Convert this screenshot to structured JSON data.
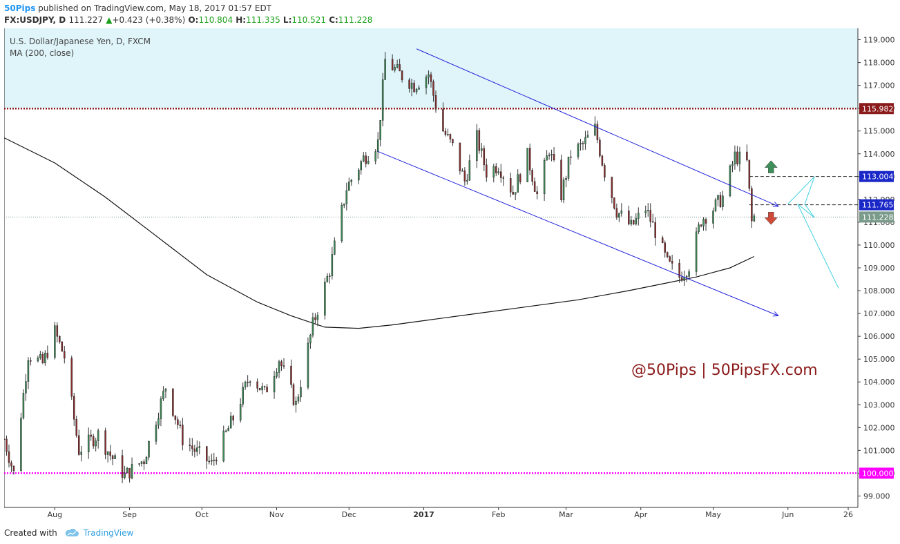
{
  "header": {
    "publisher": "50Pips",
    "published_text": "published on TradingView.com, May 18, 2017 01:57 EDT",
    "symbol": "FX:USDJPY, D",
    "last": "111.227",
    "change_arrow": "▲",
    "change": "+0.423 (+0.38%)",
    "o_label": "O:",
    "o_value": "110.804",
    "h_label": "H:",
    "h_value": "111.335",
    "l_label": "L:",
    "l_value": "110.521",
    "c_label": "C:",
    "c_value": "111.228"
  },
  "footer": {
    "created_with": "Created with",
    "brand": "TradingView"
  },
  "chart_data": {
    "type": "candlestick",
    "title": "U.S. Dollar/Japanese Yen, D, FXCM",
    "indicator": "MA (200, close)",
    "watermark": "@50Pips  |  50PipsFX.com",
    "y_range": [
      98.5,
      119.5
    ],
    "y_ticks": [
      "119.000",
      "118.000",
      "117.000",
      "116.000",
      "115.000",
      "114.000",
      "113.000",
      "112.000",
      "111.000",
      "110.000",
      "109.000",
      "108.000",
      "107.000",
      "106.000",
      "105.000",
      "104.000",
      "103.000",
      "102.000",
      "101.000",
      "100.000",
      "99.000"
    ],
    "x_range": [
      "2016-07-11",
      "2017-06-30"
    ],
    "x_ticks": [
      {
        "date": "2016-08-01",
        "label": "Aug",
        "bold": false
      },
      {
        "date": "2016-09-01",
        "label": "Sep",
        "bold": false
      },
      {
        "date": "2016-10-01",
        "label": "Oct",
        "bold": false
      },
      {
        "date": "2016-11-01",
        "label": "Nov",
        "bold": false
      },
      {
        "date": "2016-12-01",
        "label": "Dec",
        "bold": false
      },
      {
        "date": "2017-01-01",
        "label": "2017",
        "bold": true
      },
      {
        "date": "2017-02-01",
        "label": "Feb",
        "bold": false
      },
      {
        "date": "2017-03-01",
        "label": "Mar",
        "bold": false
      },
      {
        "date": "2017-04-01",
        "label": "Apr",
        "bold": false
      },
      {
        "date": "2017-05-01",
        "label": "May",
        "bold": false
      },
      {
        "date": "2017-06-01",
        "label": "Jun",
        "bold": false
      },
      {
        "date": "2017-06-26",
        "label": "26",
        "bold": false
      }
    ],
    "colors": {
      "up": "#3f8f5a",
      "down": "#8f2f2f",
      "wick": "#333333",
      "ma": "#111111",
      "channel": "#2222dd",
      "zone": "#dff5fa",
      "resistance": "#8b0000",
      "support": "#ff00ff",
      "projection": "#40d0e0",
      "watermark": "#8b1a1a"
    },
    "resistance_zone": [
      116.0,
      119.5
    ],
    "horizontal_lines": [
      {
        "name": "resistance",
        "price": 115.982,
        "label": "115.982",
        "color": "#8b1a1a",
        "style": "dotted-thick"
      },
      {
        "name": "support",
        "price": 100.0,
        "label": "100.000",
        "color": "#ff00ff",
        "style": "dotted-thick"
      },
      {
        "name": "upper-dashed",
        "price": 113.004,
        "label": "113.004",
        "color": "#1a28c8",
        "style": "dashed"
      },
      {
        "name": "lower-dashed",
        "price": 111.765,
        "label": "111.765",
        "color": "#1a28c8",
        "style": "dashed"
      },
      {
        "name": "last-price",
        "price": 111.228,
        "label": "111.228",
        "color": "#7a9a8a",
        "style": "dotted"
      }
    ],
    "channel_upper": [
      [
        "2016-12-29",
        118.6
      ],
      [
        "2017-05-28",
        111.7
      ]
    ],
    "channel_lower": [
      [
        "2016-12-13",
        114.1
      ],
      [
        "2017-05-28",
        106.9
      ]
    ],
    "bullish_arrow": [
      "2017-05-25",
      113.4
    ],
    "bearish_arrow": [
      "2017-05-25",
      111.2
    ],
    "projection_points": [
      [
        "2017-06-01",
        111.8
      ],
      [
        "2017-06-12",
        113.0
      ],
      [
        "2017-06-08",
        111.8
      ],
      [
        "2017-06-12",
        111.2
      ],
      [
        "2017-06-05",
        111.8
      ],
      [
        "2017-06-22",
        108.1
      ]
    ],
    "ma200": [
      [
        "2016-07-11",
        114.7
      ],
      [
        "2016-08-01",
        113.6
      ],
      [
        "2016-08-22",
        112.1
      ],
      [
        "2016-09-12",
        110.4
      ],
      [
        "2016-10-03",
        108.7
      ],
      [
        "2016-10-24",
        107.5
      ],
      [
        "2016-11-07",
        106.9
      ],
      [
        "2016-11-21",
        106.4
      ],
      [
        "2016-12-05",
        106.35
      ],
      [
        "2016-12-19",
        106.5
      ],
      [
        "2017-01-02",
        106.7
      ],
      [
        "2017-01-23",
        107.0
      ],
      [
        "2017-02-13",
        107.3
      ],
      [
        "2017-03-06",
        107.6
      ],
      [
        "2017-03-27",
        108.0
      ],
      [
        "2017-04-10",
        108.3
      ],
      [
        "2017-04-24",
        108.6
      ],
      [
        "2017-05-08",
        109.0
      ],
      [
        "2017-05-18",
        109.5
      ]
    ],
    "anchors": [
      [
        "2016-07-11",
        101.5
      ],
      [
        "2016-07-15",
        100.0
      ],
      [
        "2016-07-21",
        105.2
      ],
      [
        "2016-07-27",
        104.8
      ],
      [
        "2016-08-01",
        106.2
      ],
      [
        "2016-08-05",
        105.1
      ],
      [
        "2016-08-11",
        101.0
      ],
      [
        "2016-08-19",
        101.7
      ],
      [
        "2016-08-24",
        100.8
      ],
      [
        "2016-08-30",
        99.9
      ],
      [
        "2016-09-07",
        100.6
      ],
      [
        "2016-09-16",
        103.8
      ],
      [
        "2016-09-23",
        101.5
      ],
      [
        "2016-09-28",
        101.0
      ],
      [
        "2016-10-05",
        100.4
      ],
      [
        "2016-10-14",
        102.4
      ],
      [
        "2016-10-21",
        104.3
      ],
      [
        "2016-10-27",
        103.5
      ],
      [
        "2016-11-02",
        105.0
      ],
      [
        "2016-11-09",
        103.0
      ],
      [
        "2016-11-16",
        106.5
      ],
      [
        "2016-11-23",
        108.9
      ],
      [
        "2016-11-30",
        112.5
      ],
      [
        "2016-12-07",
        113.8
      ],
      [
        "2016-12-13",
        114.5
      ],
      [
        "2016-12-16",
        118.1
      ],
      [
        "2016-12-22",
        117.5
      ],
      [
        "2016-12-28",
        117.0
      ],
      [
        "2017-01-03",
        117.5
      ],
      [
        "2017-01-08",
        115.2
      ],
      [
        "2017-01-13",
        114.3
      ],
      [
        "2017-01-18",
        112.8
      ],
      [
        "2017-01-23",
        114.7
      ],
      [
        "2017-01-27",
        113.2
      ],
      [
        "2017-02-01",
        113.5
      ],
      [
        "2017-02-07",
        112.3
      ],
      [
        "2017-02-13",
        113.9
      ],
      [
        "2017-02-17",
        112.2
      ],
      [
        "2017-02-22",
        114.2
      ],
      [
        "2017-02-27",
        112.2
      ],
      [
        "2017-03-03",
        114.0
      ],
      [
        "2017-03-08",
        114.4
      ],
      [
        "2017-03-13",
        115.1
      ],
      [
        "2017-03-17",
        113.2
      ],
      [
        "2017-03-22",
        111.5
      ],
      [
        "2017-03-28",
        110.8
      ],
      [
        "2017-04-03",
        111.6
      ],
      [
        "2017-04-07",
        110.6
      ],
      [
        "2017-04-12",
        109.2
      ],
      [
        "2017-04-17",
        108.6
      ],
      [
        "2017-04-21",
        109.1
      ],
      [
        "2017-04-26",
        111.1
      ],
      [
        "2017-05-01",
        111.6
      ],
      [
        "2017-05-05",
        112.1
      ],
      [
        "2017-05-10",
        113.9
      ],
      [
        "2017-05-15",
        113.6
      ],
      [
        "2017-05-17",
        111.0
      ],
      [
        "2017-05-18",
        111.23
      ]
    ]
  }
}
